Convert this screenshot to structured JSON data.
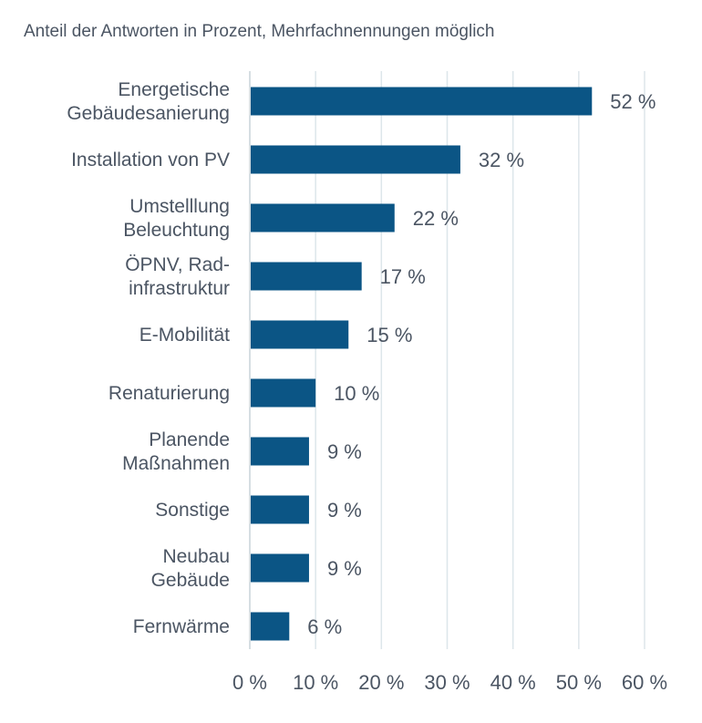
{
  "chart_data": {
    "type": "bar",
    "orientation": "horizontal",
    "subtitle": "Anteil der Antworten in Prozent, Mehrfachnennungen möglich",
    "categories": [
      [
        "Energetische",
        "Gebäudesanierung"
      ],
      [
        "Installation von PV"
      ],
      [
        "Umstelllung",
        "Beleuchtung"
      ],
      [
        "ÖPNV, Rad-",
        "infrastruktur"
      ],
      [
        "E-Mobilität"
      ],
      [
        "Renaturierung"
      ],
      [
        "Planende",
        "Maßnahmen"
      ],
      [
        "Sonstige"
      ],
      [
        "Neubau",
        "Gebäude"
      ],
      [
        "Fernwärme"
      ]
    ],
    "values": [
      52,
      32,
      22,
      17,
      15,
      10,
      9,
      9,
      9,
      6
    ],
    "value_labels": [
      "52 %",
      "32 %",
      "22 %",
      "17 %",
      "15 %",
      "10 %",
      "9 %",
      "9 %",
      "9 %",
      "6 %"
    ],
    "x_ticks": [
      0,
      10,
      20,
      30,
      40,
      50,
      60
    ],
    "x_tick_labels": [
      "0 %",
      "10 %",
      "20 %",
      "30 %",
      "40 %",
      "50 %",
      "60 %"
    ],
    "xlim": [
      0,
      60
    ],
    "grid": "vertical",
    "bar_color": "#0b5585",
    "grid_color": "#dde6ea"
  }
}
